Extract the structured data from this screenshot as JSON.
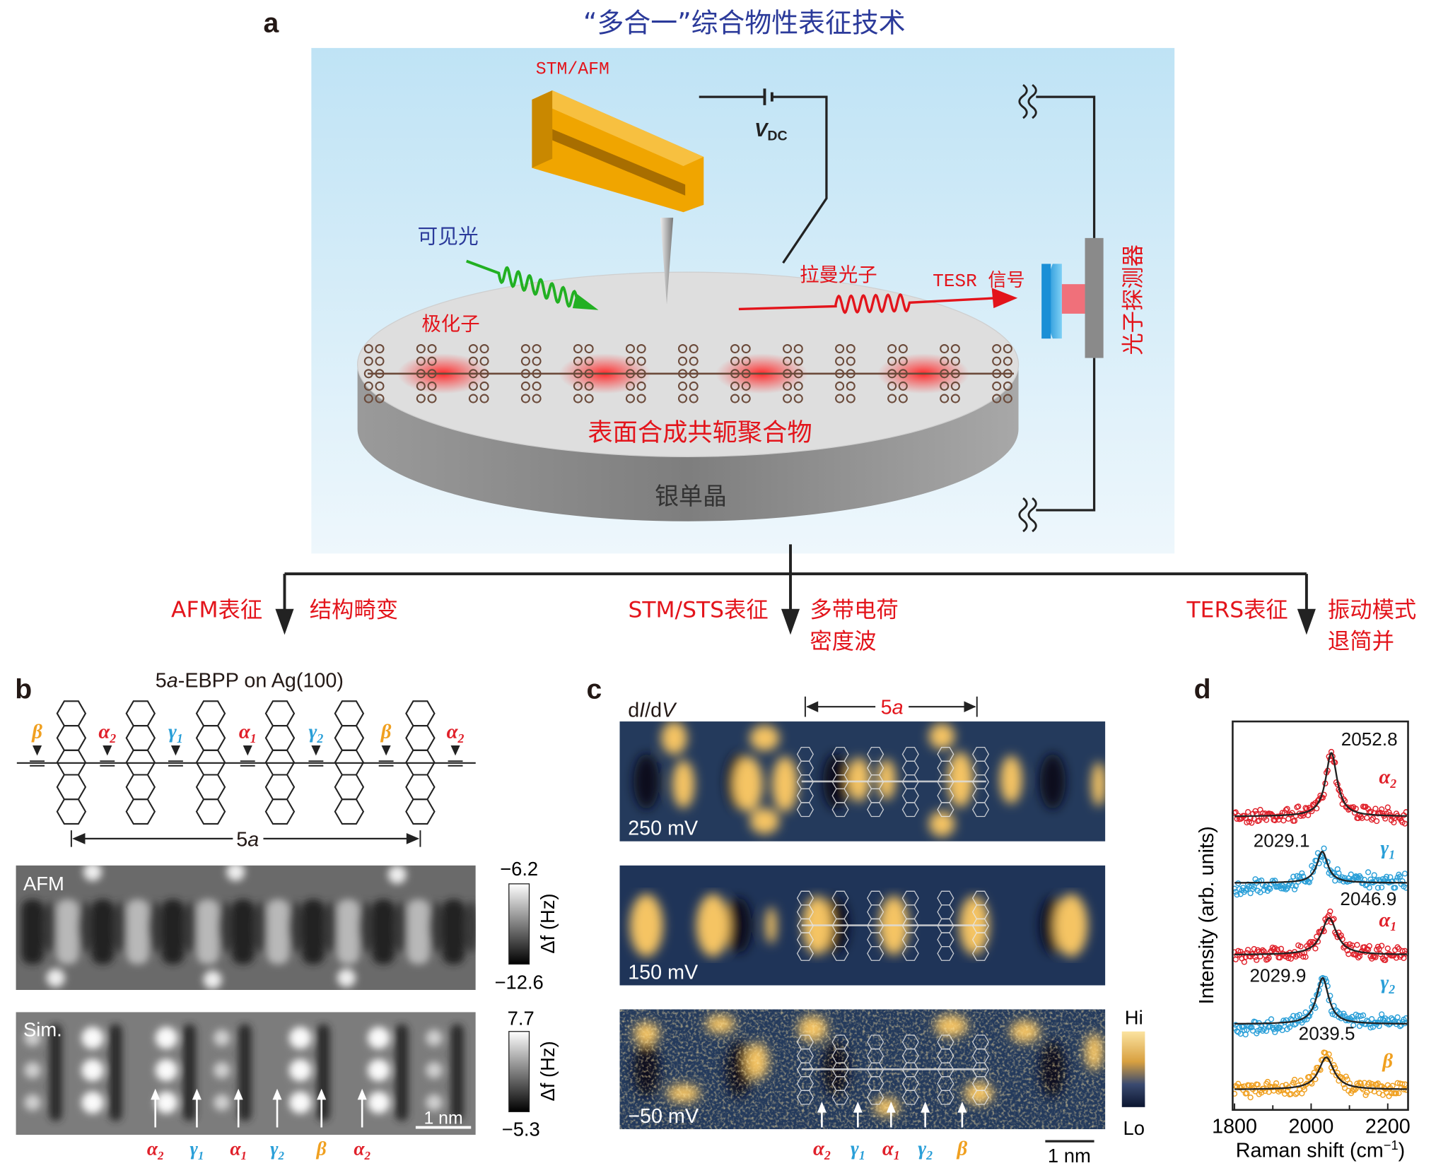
{
  "panel_a": {
    "label": "a",
    "title": "“多合一”综合物性表征技术",
    "probe_label": "STM/AFM",
    "vdc_label": "V",
    "vdc_sub": "DC",
    "visible_light": "可见光",
    "raman_photon": "拉曼光子",
    "tesr_signal": "TESR 信号",
    "polaron": "极化子",
    "detector": "光子探测器",
    "polymer": "表面合成共轭聚合物",
    "substrate": "银单晶",
    "branches": [
      {
        "technique": "AFM表征",
        "result": [
          "结构畸变"
        ]
      },
      {
        "technique": "STM/STS表征",
        "result": [
          "多带电荷",
          "密度波"
        ]
      },
      {
        "technique": "TERS表征",
        "result": [
          "振动模式",
          "退简并"
        ]
      }
    ]
  },
  "panel_b": {
    "label": "b",
    "title_num": "5",
    "title_italic": "a",
    "title_rest": "-EBPP on Ag(100)",
    "sites": [
      {
        "sym": "β",
        "sub": "",
        "kind": "beta"
      },
      {
        "sym": "α",
        "sub": "2",
        "kind": "alpha"
      },
      {
        "sym": "γ",
        "sub": "1",
        "kind": "gamma"
      },
      {
        "sym": "α",
        "sub": "1",
        "kind": "alpha"
      },
      {
        "sym": "γ",
        "sub": "2",
        "kind": "gamma"
      },
      {
        "sym": "β",
        "sub": "",
        "kind": "beta"
      },
      {
        "sym": "α",
        "sub": "2",
        "kind": "alpha"
      }
    ],
    "period_num": "5",
    "period_italic": "a",
    "afm": {
      "label": "AFM",
      "cbar_max": "−6.2",
      "cbar_min": "−12.6",
      "cbar_unit": "Δf (Hz)"
    },
    "sim": {
      "label": "Sim.",
      "cbar_max": "7.7",
      "cbar_min": "−5.3",
      "cbar_unit": "Δf (Hz)",
      "scalebar": "1 nm"
    },
    "arrow_labels": [
      {
        "sym": "α",
        "sub": "2",
        "kind": "alpha"
      },
      {
        "sym": "γ",
        "sub": "1",
        "kind": "gamma"
      },
      {
        "sym": "α",
        "sub": "1",
        "kind": "alpha"
      },
      {
        "sym": "γ",
        "sub": "2",
        "kind": "gamma"
      },
      {
        "sym": "β",
        "sub": "",
        "kind": "beta"
      },
      {
        "sym": "α",
        "sub": "2",
        "kind": "alpha"
      }
    ]
  },
  "panel_c": {
    "label": "c",
    "quantity_pre": "d",
    "quantity_i": "I",
    "quantity_mid": "/d",
    "quantity_v": "V",
    "period_num": "5",
    "period_italic": "a",
    "maps": [
      {
        "bias": "250 mV"
      },
      {
        "bias": "150 mV"
      },
      {
        "bias": "−50 mV"
      }
    ],
    "cbar_hi": "Hi",
    "cbar_lo": "Lo",
    "scalebar": "1 nm",
    "arrow_labels": [
      {
        "sym": "α",
        "sub": "2",
        "kind": "alpha"
      },
      {
        "sym": "γ",
        "sub": "1",
        "kind": "gamma"
      },
      {
        "sym": "α",
        "sub": "1",
        "kind": "alpha"
      },
      {
        "sym": "γ",
        "sub": "2",
        "kind": "gamma"
      },
      {
        "sym": "β",
        "sub": "",
        "kind": "beta"
      }
    ]
  },
  "panel_d": {
    "label": "d"
  },
  "colors": {
    "alpha": "#e0202a",
    "gamma": "#2a9fd8",
    "beta": "#f0a020",
    "title_blue": "#2b3a9a",
    "red": "#e3141b",
    "fit": "#222222"
  },
  "chart_data": {
    "type": "scatter",
    "xlabel": "Raman shift (cm−1)",
    "xlabel_main": "Raman shift (cm",
    "xlabel_sup": "−1",
    "xlabel_end": ")",
    "ylabel": "Intensity (arb. units)",
    "xlim": [
      1800,
      2250
    ],
    "xticks": [
      1800,
      2000,
      2200
    ],
    "xtick_labels": [
      "1800",
      "2000",
      "2200"
    ],
    "series": [
      {
        "name": "α2",
        "sym": "α",
        "sub": "2",
        "kind": "alpha",
        "peak": 2052.8,
        "peak_label": "2052.8",
        "hwhm": 18
      },
      {
        "name": "γ1",
        "sym": "γ",
        "sub": "1",
        "kind": "gamma",
        "peak": 2029.1,
        "peak_label": "2029.1",
        "hwhm": 17
      },
      {
        "name": "α1",
        "sym": "α",
        "sub": "1",
        "kind": "alpha",
        "peak": 2046.9,
        "peak_label": "2046.9",
        "hwhm": 24
      },
      {
        "name": "γ2",
        "sym": "γ",
        "sub": "2",
        "kind": "gamma",
        "peak": 2029.9,
        "peak_label": "2029.9",
        "hwhm": 19
      },
      {
        "name": "β",
        "sym": "β",
        "sub": "",
        "kind": "beta",
        "peak": 2039.5,
        "peak_label": "2039.5",
        "hwhm": 24
      }
    ]
  }
}
